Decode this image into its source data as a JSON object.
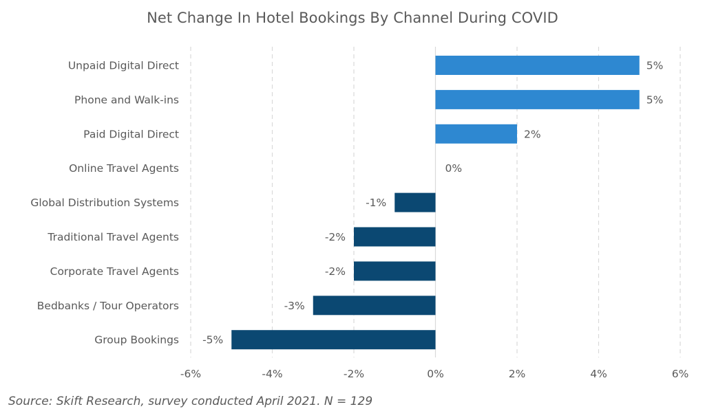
{
  "chart_data": {
    "type": "bar",
    "orientation": "horizontal",
    "title": "Net Change In Hotel Bookings By Channel During COVID",
    "categories": [
      "Unpaid Digital Direct",
      "Phone and Walk-ins",
      "Paid Digital Direct",
      "Online Travel Agents",
      "Global Distribution Systems",
      "Traditional Travel Agents",
      "Corporate Travel Agents",
      "Bedbanks / Tour Operators",
      "Group Bookings"
    ],
    "values": [
      5,
      5,
      2,
      0,
      -1,
      -2,
      -2,
      -3,
      -5
    ],
    "data_labels": [
      "5%",
      "5%",
      "2%",
      "0%",
      "-1%",
      "-2%",
      "-2%",
      "-3%",
      "-5%"
    ],
    "xlim": [
      -6,
      6
    ],
    "xticks": [
      -6,
      -4,
      -2,
      0,
      2,
      4,
      6
    ],
    "xtick_labels": [
      "-6%",
      "-4%",
      "-2%",
      "0%",
      "2%",
      "4%",
      "6%"
    ],
    "grid": "vertical dashed",
    "legend": "none",
    "colors": {
      "positive": "#2e88d1",
      "negative": "#0b4872"
    }
  },
  "source": "Source: Skift Research, survey conducted April 2021. N = 129"
}
